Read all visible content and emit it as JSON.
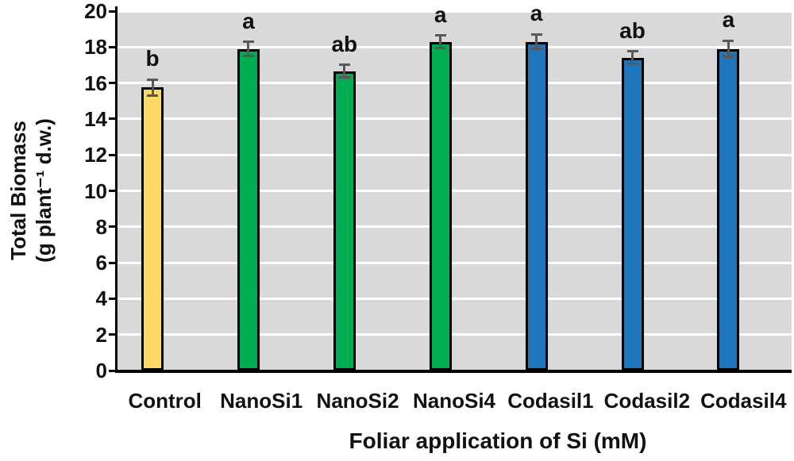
{
  "chart_data": {
    "type": "bar",
    "title": "",
    "xlabel": "Foliar application of Si (mM)",
    "ylabel_line1": "Total Biomass",
    "ylabel_line2": "(g plant⁻¹ d.w.)",
    "categories": [
      "Control",
      "NanoSi1",
      "NanoSi2",
      "NanoSi4",
      "Codasil1",
      "Codasil2",
      "Codasil4"
    ],
    "values": [
      15.75,
      17.9,
      16.65,
      18.3,
      18.3,
      17.4,
      17.9
    ],
    "errors": [
      0.45,
      0.4,
      0.35,
      0.35,
      0.4,
      0.35,
      0.45
    ],
    "sig_letters": [
      "b",
      "a",
      "ab",
      "a",
      "a",
      "ab",
      "a"
    ],
    "bar_colors": [
      "#FFD966",
      "#00AC50",
      "#00AC50",
      "#00AC50",
      "#1F76BC",
      "#1F76BC",
      "#1F76BC"
    ],
    "ylim": [
      0,
      20
    ],
    "ytick_step": 2,
    "ytick_labels": [
      "0",
      "2",
      "4",
      "6",
      "8",
      "10",
      "12",
      "14",
      "16",
      "18",
      "20"
    ],
    "legend": "none",
    "grid": "horizontal",
    "colors": {
      "plot_background": "#D9D9D9",
      "gridline": "#FFFFFF",
      "axis_line": "#000000",
      "bar_outline": "#000000",
      "error_bar": "#595959",
      "text": "#111111"
    }
  }
}
